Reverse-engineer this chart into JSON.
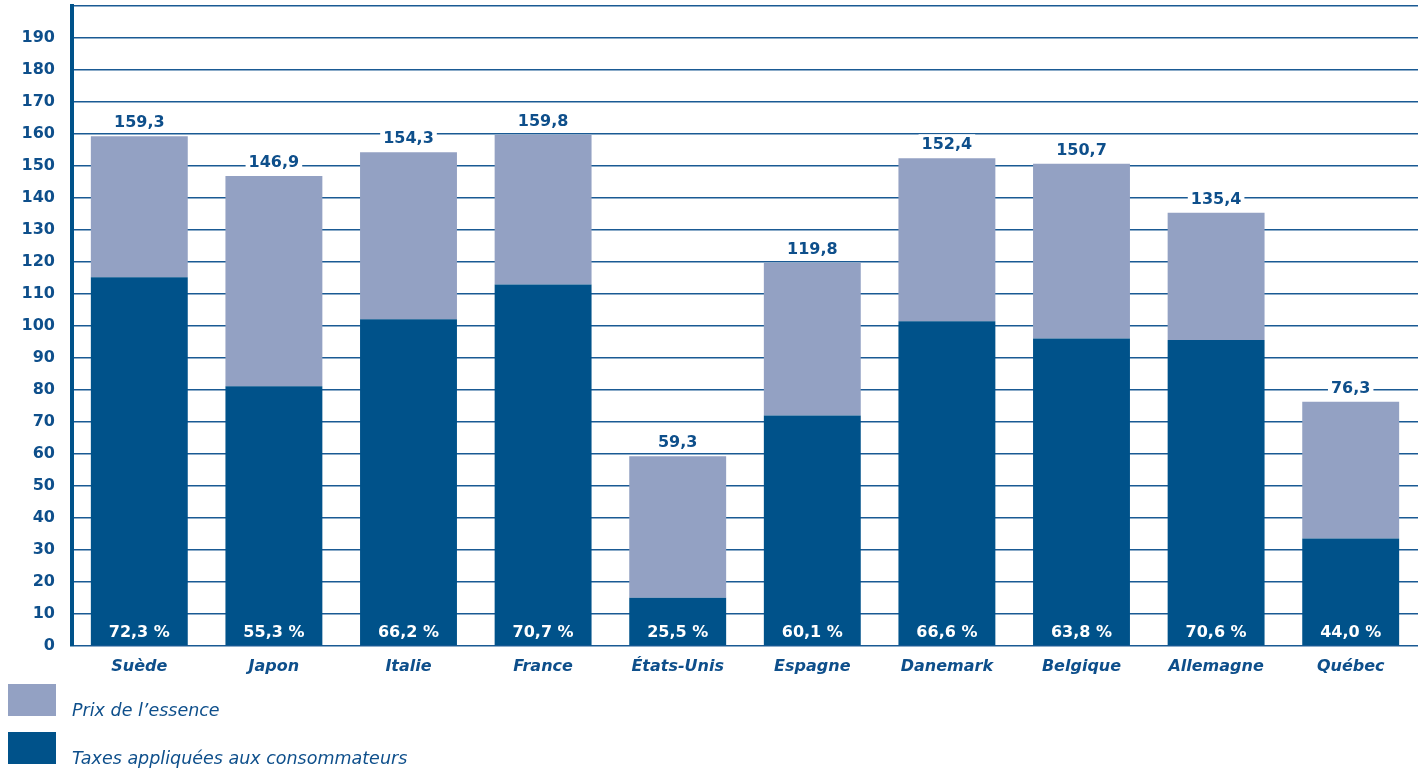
{
  "chart_data": {
    "type": "bar",
    "stacked": true,
    "categories": [
      "Suède",
      "Japon",
      "Italie",
      "France",
      "États-Unis",
      "Espagne",
      "Danemark",
      "Belgique",
      "Allemagne",
      "Québec"
    ],
    "series": [
      {
        "name": "Taxes appliquées aux consommateurs",
        "color": "#00528a",
        "values": [
          115.2,
          81.2,
          102.1,
          113.0,
          15.1,
          72.0,
          101.5,
          96.1,
          95.6,
          33.6
        ]
      },
      {
        "name": "Prix de l’essence",
        "color": "#93a1c3",
        "values": [
          44.1,
          65.7,
          52.2,
          46.8,
          44.2,
          47.8,
          50.9,
          54.6,
          39.8,
          42.7
        ]
      }
    ],
    "totals": [
      "159,3",
      "146,9",
      "154,3",
      "159,8",
      "59,3",
      "119,8",
      "152,4",
      "150,7",
      "135,4",
      "76,3"
    ],
    "annotations": [
      {
        "text": "72,3 %",
        "x": "Suède",
        "y": 0
      },
      {
        "text": "55,3 %",
        "x": "Japon",
        "y": 0
      },
      {
        "text": "66,2 %",
        "x": "Italie",
        "y": 0
      },
      {
        "text": "70,7 %",
        "x": "France",
        "y": 0
      },
      {
        "text": "25,5 %",
        "x": "États-Unis",
        "y": 0
      },
      {
        "text": "60,1 %",
        "x": "Espagne",
        "y": 0
      },
      {
        "text": "66,6 %",
        "x": "Danemark",
        "y": 0
      },
      {
        "text": "63,8 %",
        "x": "Belgique",
        "y": 0
      },
      {
        "text": "70,6 %",
        "x": "Allemagne",
        "y": 0
      },
      {
        "text": "44,0 %",
        "x": "Québec",
        "y": 0
      }
    ],
    "ylim": [
      0,
      200
    ],
    "yticks": [
      0,
      10,
      20,
      30,
      40,
      50,
      60,
      70,
      80,
      90,
      100,
      110,
      120,
      130,
      140,
      150,
      160,
      170,
      180,
      190,
      {
        "value": 200,
        "label": null
      }
    ],
    "grid": "y",
    "legend": "bottom left"
  }
}
